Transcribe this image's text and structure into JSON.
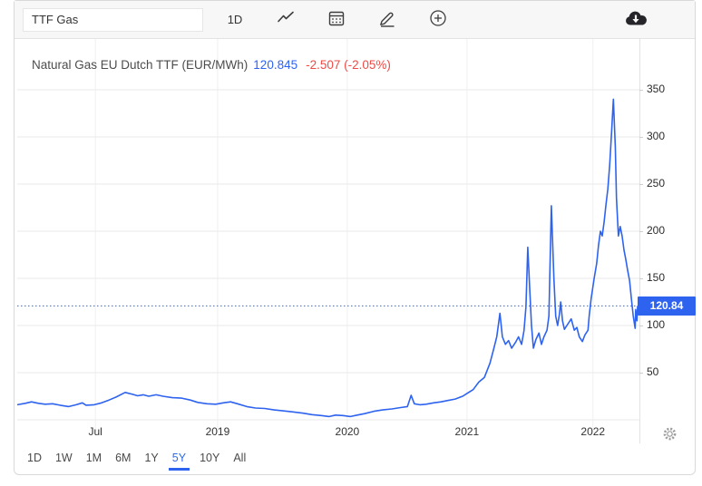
{
  "toolbar": {
    "search": {
      "value": "TTF Gas"
    },
    "interval_button": "1D",
    "icon_names": [
      "line-chart-icon",
      "calendar-icon",
      "draw-icon",
      "add-circle-icon",
      "cloud-download-icon",
      "more-menu-icon",
      "gear-icon"
    ]
  },
  "header": {
    "title": "Natural Gas EU Dutch TTF (EUR/MWh)",
    "last_price": "120.845",
    "change": "-2.507 (-2.05%)"
  },
  "axis_price_tag": "120.84",
  "ranges": {
    "items": [
      "1D",
      "1W",
      "1M",
      "6M",
      "1Y",
      "5Y",
      "10Y",
      "All"
    ],
    "active": "5Y"
  },
  "colors": {
    "accent": "#2e63f0",
    "negative": "#ef4b46",
    "line": "#2e63f0",
    "tag_bg": "#2e63f0",
    "grid": "#e9e9e9"
  },
  "chart_data": {
    "type": "line",
    "title": "Natural Gas EU Dutch TTF (EUR/MWh)",
    "ylabel": "EUR/MWh",
    "yticks": [
      50,
      100,
      150,
      200,
      250,
      300,
      350
    ],
    "ytick_unlabeled": [
      0
    ],
    "ylim": [
      -13.5,
      404
    ],
    "grid": true,
    "legend": "none",
    "current_price": 120.845,
    "price_line_style": "dotted",
    "xticks": [
      {
        "label": "Jul",
        "pos": 0.126
      },
      {
        "label": "2019",
        "pos": 0.323
      },
      {
        "label": "2020",
        "pos": 0.532
      },
      {
        "label": "2021",
        "pos": 0.725
      },
      {
        "label": "2022",
        "pos": 0.928
      }
    ],
    "series": [
      {
        "name": "Natural Gas EU Dutch TTF (EUR/MWh)",
        "points": [
          [
            0.0,
            16
          ],
          [
            0.013,
            17.5
          ],
          [
            0.023,
            19
          ],
          [
            0.034,
            17.5
          ],
          [
            0.045,
            16.5
          ],
          [
            0.057,
            17
          ],
          [
            0.069,
            15.5
          ],
          [
            0.083,
            14
          ],
          [
            0.095,
            16
          ],
          [
            0.105,
            18
          ],
          [
            0.111,
            15.5
          ],
          [
            0.124,
            16
          ],
          [
            0.136,
            18
          ],
          [
            0.148,
            21
          ],
          [
            0.159,
            24
          ],
          [
            0.174,
            29
          ],
          [
            0.186,
            27
          ],
          [
            0.194,
            25.5
          ],
          [
            0.203,
            26.5
          ],
          [
            0.212,
            25
          ],
          [
            0.224,
            26.5
          ],
          [
            0.235,
            25
          ],
          [
            0.25,
            23.5
          ],
          [
            0.265,
            23
          ],
          [
            0.279,
            21
          ],
          [
            0.291,
            18.5
          ],
          [
            0.306,
            17
          ],
          [
            0.32,
            16.5
          ],
          [
            0.332,
            18
          ],
          [
            0.344,
            19
          ],
          [
            0.355,
            17
          ],
          [
            0.37,
            14
          ],
          [
            0.384,
            12.5
          ],
          [
            0.399,
            12
          ],
          [
            0.414,
            10.5
          ],
          [
            0.428,
            9.5
          ],
          [
            0.443,
            8.5
          ],
          [
            0.461,
            7
          ],
          [
            0.475,
            5.5
          ],
          [
            0.49,
            4.5
          ],
          [
            0.503,
            3.5
          ],
          [
            0.513,
            5
          ],
          [
            0.525,
            4.5
          ],
          [
            0.537,
            3.5
          ],
          [
            0.548,
            5
          ],
          [
            0.56,
            6.5
          ],
          [
            0.575,
            9
          ],
          [
            0.589,
            10.5
          ],
          [
            0.604,
            11.5
          ],
          [
            0.618,
            13
          ],
          [
            0.629,
            14
          ],
          [
            0.635,
            26
          ],
          [
            0.64,
            17
          ],
          [
            0.649,
            16
          ],
          [
            0.659,
            16.5
          ],
          [
            0.671,
            18
          ],
          [
            0.683,
            19
          ],
          [
            0.694,
            20.5
          ],
          [
            0.706,
            22
          ],
          [
            0.718,
            25
          ],
          [
            0.725,
            28
          ],
          [
            0.735,
            32
          ],
          [
            0.744,
            40
          ],
          [
            0.753,
            45
          ],
          [
            0.762,
            60
          ],
          [
            0.768,
            75
          ],
          [
            0.773,
            88
          ],
          [
            0.778,
            113
          ],
          [
            0.782,
            88
          ],
          [
            0.787,
            80
          ],
          [
            0.792,
            84
          ],
          [
            0.797,
            76
          ],
          [
            0.803,
            82
          ],
          [
            0.808,
            88
          ],
          [
            0.813,
            80
          ],
          [
            0.817,
            95
          ],
          [
            0.82,
            120
          ],
          [
            0.823,
            183
          ],
          [
            0.826,
            140
          ],
          [
            0.829,
            100
          ],
          [
            0.832,
            76
          ],
          [
            0.836,
            85
          ],
          [
            0.841,
            92
          ],
          [
            0.845,
            80
          ],
          [
            0.849,
            88
          ],
          [
            0.854,
            95
          ],
          [
            0.857,
            110
          ],
          [
            0.861,
            227
          ],
          [
            0.865,
            150
          ],
          [
            0.868,
            110
          ],
          [
            0.871,
            100
          ],
          [
            0.874,
            112
          ],
          [
            0.876,
            125
          ],
          [
            0.879,
            105
          ],
          [
            0.882,
            96
          ],
          [
            0.886,
            100
          ],
          [
            0.89,
            104
          ],
          [
            0.893,
            107
          ],
          [
            0.898,
            95
          ],
          [
            0.902,
            98
          ],
          [
            0.906,
            88
          ],
          [
            0.911,
            83
          ],
          [
            0.915,
            90
          ],
          [
            0.92,
            95
          ],
          [
            0.922,
            110
          ],
          [
            0.925,
            128
          ],
          [
            0.93,
            150
          ],
          [
            0.934,
            166
          ],
          [
            0.937,
            185
          ],
          [
            0.94,
            200
          ],
          [
            0.943,
            195
          ],
          [
            0.946,
            210
          ],
          [
            0.949,
            228
          ],
          [
            0.952,
            245
          ],
          [
            0.955,
            270
          ],
          [
            0.958,
            305
          ],
          [
            0.961,
            340
          ],
          [
            0.964,
            290
          ],
          [
            0.966,
            235
          ],
          [
            0.969,
            195
          ],
          [
            0.972,
            205
          ],
          [
            0.975,
            195
          ],
          [
            0.978,
            180
          ],
          [
            0.981,
            170
          ],
          [
            0.984,
            158
          ],
          [
            0.987,
            148
          ],
          [
            0.99,
            128
          ],
          [
            0.993,
            110
          ],
          [
            0.996,
            97
          ],
          [
            0.997,
            117
          ],
          [
            0.999,
            105
          ],
          [
            1.0,
            120.845
          ]
        ]
      }
    ]
  }
}
